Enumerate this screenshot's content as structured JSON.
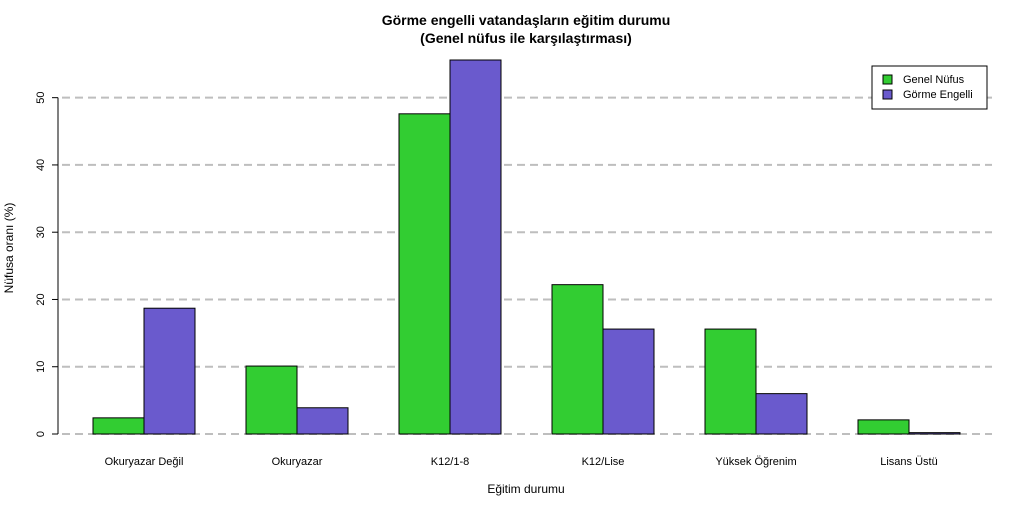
{
  "chart_data": {
    "type": "bar",
    "title": "Görme engelli vatandaşların eğitim durumu",
    "subtitle": "(Genel nüfus ile karşılaştırması)",
    "xlabel": "Eğitim durumu",
    "ylabel": "Nüfusa oranı (%)",
    "categories": [
      "Okuryazar Değil",
      "Okuryazar",
      "K12/1-8",
      "K12/Lise",
      "Yüksek Öğrenim",
      "Lisans Üstü"
    ],
    "series": [
      {
        "name": "Genel Nüfus",
        "color": "#32CD32",
        "values": [
          2.4,
          10.1,
          47.6,
          22.2,
          15.6,
          2.1
        ]
      },
      {
        "name": "Görme Engelli",
        "color": "#6A5ACD",
        "values": [
          18.7,
          3.9,
          55.6,
          15.6,
          6.0,
          0.2
        ]
      }
    ],
    "ylim": [
      0,
      55.6
    ],
    "yticks": [
      0,
      10,
      20,
      30,
      40,
      50
    ],
    "grid": "horizontal dashed",
    "legend_position": "top-right"
  }
}
